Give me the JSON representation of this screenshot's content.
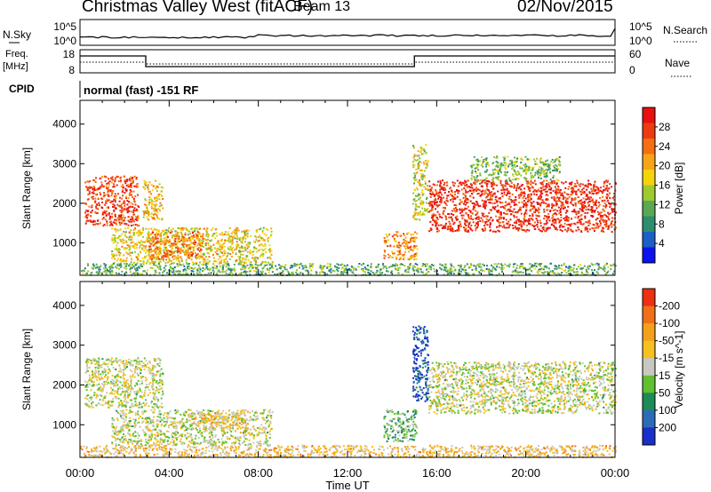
{
  "header": {
    "title": "Christmas Valley West (fitACF)",
    "beam": "Beam 13",
    "date": "02/Nov/2015"
  },
  "top_panels": {
    "noise": {
      "left_label": "N.Sky",
      "left_ticks": [
        "10^5",
        "10^0"
      ],
      "right_label": "N.Search",
      "right_ticks": [
        "10^5",
        "10^0"
      ]
    },
    "freq": {
      "left_label_line1": "Freq.",
      "left_label_line2": "[MHz]",
      "left_ticks": [
        "18",
        "8"
      ],
      "right_label": "Nave",
      "right_ticks": [
        "60",
        "0"
      ]
    },
    "cpid": {
      "label": "CPID",
      "text": "normal (fast) -151 RF"
    }
  },
  "x_axis": {
    "label": "Time UT",
    "ticks": [
      "00:00",
      "04:00",
      "08:00",
      "12:00",
      "16:00",
      "20:00",
      "00:00"
    ]
  },
  "chart_data": [
    {
      "type": "heatmap",
      "name": "power",
      "ylabel": "Slant Range [km]",
      "ylim": [
        180,
        4600
      ],
      "yticks": [
        1000,
        2000,
        3000,
        4000
      ],
      "xlim_hours": [
        0,
        24
      ],
      "colorbar": {
        "label": "Power [dB]",
        "tick_labels": [
          "4",
          "8",
          "12",
          "16",
          "20",
          "24",
          "28"
        ],
        "colors": [
          "#0b12f0",
          "#1c5fc8",
          "#2e8d6e",
          "#5aa854",
          "#9fca2e",
          "#f6d40b",
          "#f7a416",
          "#f46e12",
          "#ee3a10",
          "#e81010"
        ]
      },
      "regions": [
        {
          "t0": 0.2,
          "t1": 2.6,
          "r0": 1450,
          "r1": 2700,
          "level": 0.85
        },
        {
          "t0": 2.8,
          "t1": 3.7,
          "r0": 1600,
          "r1": 2600,
          "level": 0.6
        },
        {
          "t0": 1.4,
          "t1": 8.6,
          "r0": 500,
          "r1": 1400,
          "level": 0.55
        },
        {
          "t0": 3.0,
          "t1": 5.5,
          "r0": 600,
          "r1": 1300,
          "level": 0.75
        },
        {
          "t0": 13.6,
          "t1": 15.1,
          "r0": 600,
          "r1": 1300,
          "level": 0.7
        },
        {
          "t0": 14.9,
          "t1": 15.6,
          "r0": 1600,
          "r1": 3500,
          "level": 0.5
        },
        {
          "t0": 15.6,
          "t1": 24.0,
          "r0": 1300,
          "r1": 2600,
          "level": 0.9
        },
        {
          "t0": 17.5,
          "t1": 21.5,
          "r0": 2600,
          "r1": 3200,
          "level": 0.4
        },
        {
          "t0": 0.0,
          "t1": 24.0,
          "r0": 200,
          "r1": 500,
          "level": 0.35
        }
      ]
    },
    {
      "type": "heatmap",
      "name": "velocity",
      "ylabel": "Slant Range [km]",
      "ylim": [
        180,
        4600
      ],
      "yticks": [
        1000,
        2000,
        3000,
        4000
      ],
      "xlim_hours": [
        0,
        24
      ],
      "colorbar": {
        "label": "Velocity [m s^-1]",
        "tick_labels": [
          "200",
          "100",
          "50",
          "15",
          "-15",
          "-50",
          "-100",
          "-200"
        ],
        "colors": [
          "#1a2ec8",
          "#2b6cb8",
          "#1d8a58",
          "#60c030",
          "#c8c8c0",
          "#f6c020",
          "#f4a018",
          "#f07018",
          "#ec3010"
        ]
      },
      "regions": [
        {
          "t0": 0.2,
          "t1": 3.7,
          "r0": 1450,
          "r1": 2700,
          "level": 0.5
        },
        {
          "t0": 1.4,
          "t1": 8.6,
          "r0": 500,
          "r1": 1400,
          "level": 0.5
        },
        {
          "t0": 5.0,
          "t1": 7.5,
          "r0": 900,
          "r1": 1350,
          "level": 0.62
        },
        {
          "t0": 13.6,
          "t1": 15.1,
          "r0": 600,
          "r1": 1400,
          "level": 0.38
        },
        {
          "t0": 14.9,
          "t1": 15.6,
          "r0": 1600,
          "r1": 3500,
          "level": 0.12
        },
        {
          "t0": 15.6,
          "t1": 24.0,
          "r0": 1300,
          "r1": 2600,
          "level": 0.5
        },
        {
          "t0": 0.0,
          "t1": 24.0,
          "r0": 200,
          "r1": 500,
          "level": 0.62
        }
      ]
    }
  ]
}
